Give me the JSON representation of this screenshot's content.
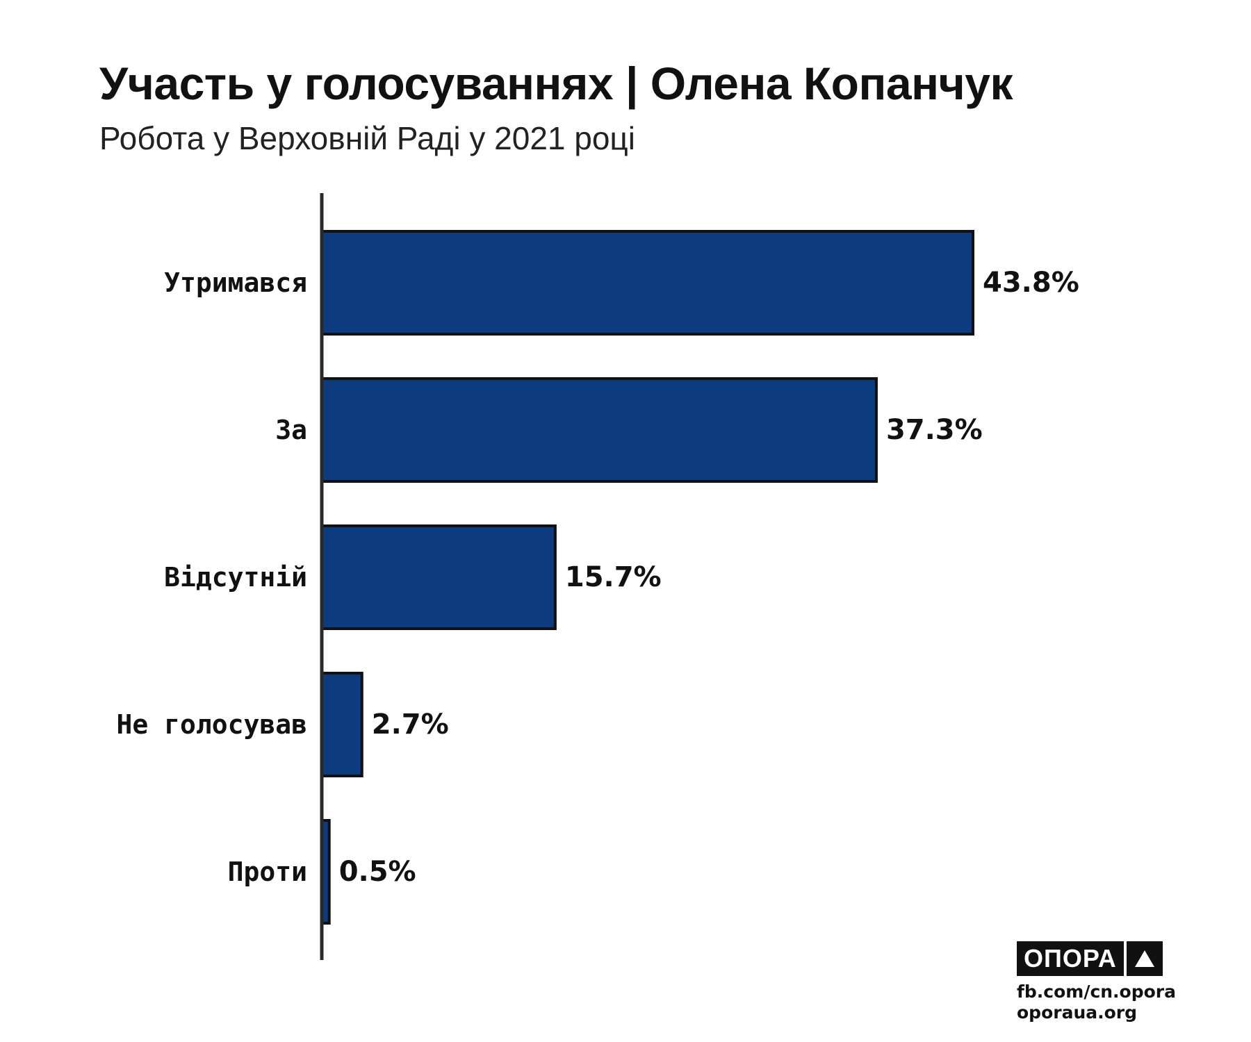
{
  "chart_data": {
    "type": "bar",
    "orientation": "horizontal",
    "title": "Участь у голосуваннях | Олена Копанчук",
    "subtitle": "Робота у Верховній Раді у 2021 році",
    "categories": [
      "Утримався",
      "За",
      "Відсутній",
      "Не голосував",
      "Проти"
    ],
    "values": [
      43.8,
      37.3,
      15.7,
      2.7,
      0.5
    ],
    "value_labels": [
      "43.8%",
      "37.3%",
      "15.7%",
      "2.7%",
      "0.5%"
    ],
    "xlim": [
      0,
      43.8
    ],
    "grid": false,
    "bar_color": "#0d3b80",
    "bar_outline": "#111111"
  },
  "branding": {
    "logo_text": "ОПОРА",
    "logo_icon": "triangle-up-icon",
    "links": [
      "fb.com/cn.opora",
      "oporaua.org"
    ]
  }
}
